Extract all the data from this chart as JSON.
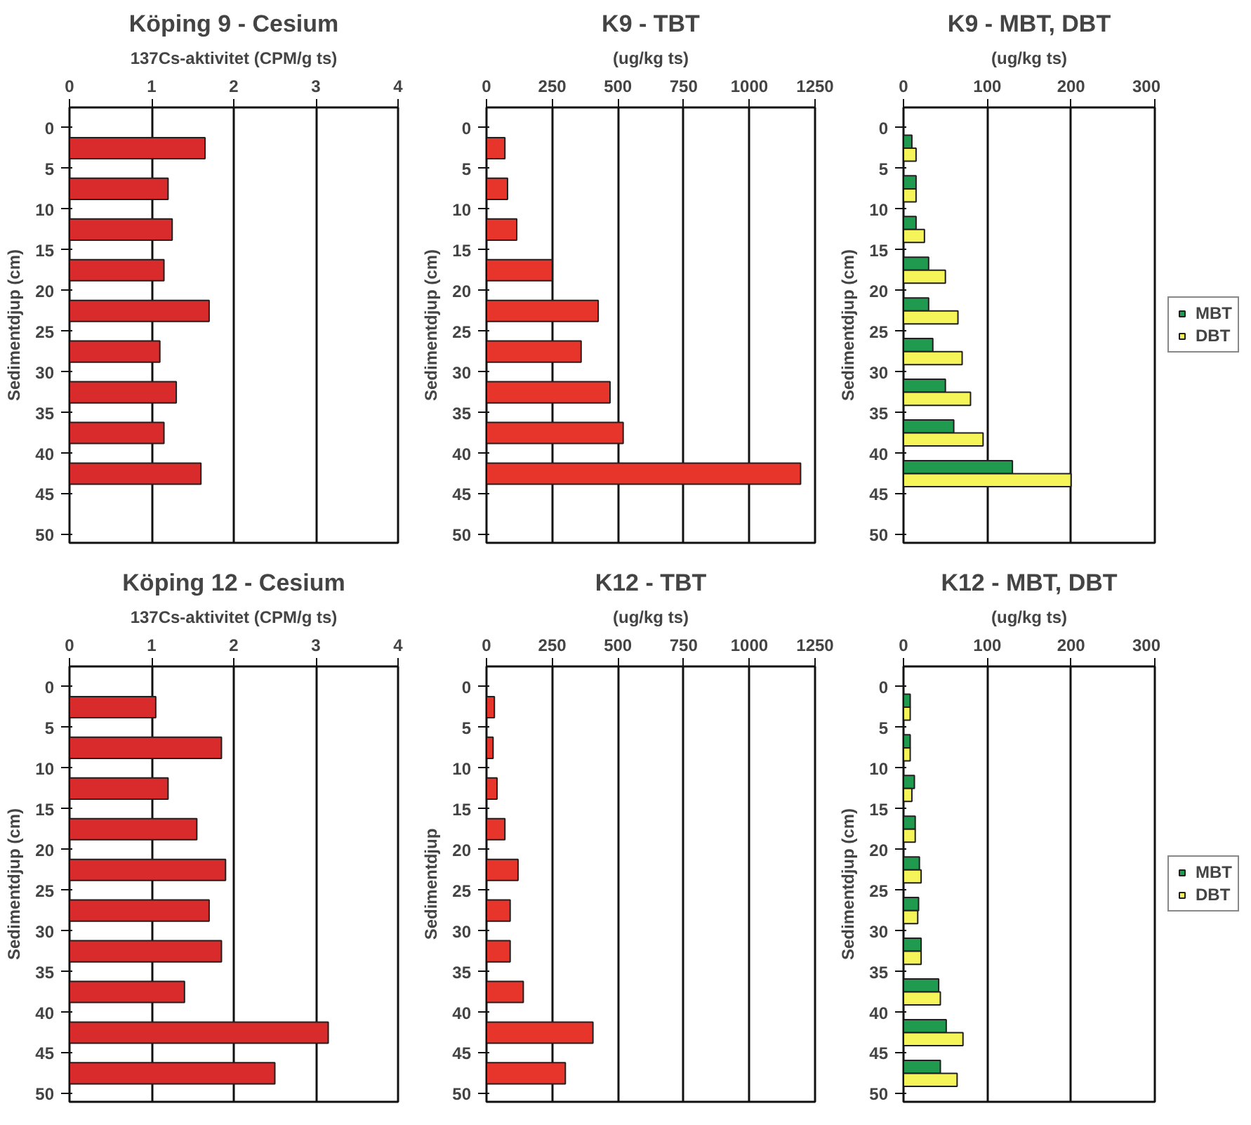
{
  "chart_data": [
    {
      "type": "bar",
      "orientation": "horizontal",
      "title": "Köping 9 - Cesium",
      "xlabel": "137Cs-aktivitet (CPM/g ts)",
      "ylabel": "Sedimentdjup (cm)",
      "xlim": [
        0,
        4
      ],
      "xticks": [
        0,
        1,
        2,
        3,
        4
      ],
      "ylim": [
        51,
        -2.5
      ],
      "yticks": [
        0,
        5,
        10,
        15,
        20,
        25,
        30,
        35,
        40,
        45,
        50
      ],
      "grid": "x",
      "x": [
        2.5,
        7.5,
        12.5,
        17.5,
        22.5,
        27.5,
        32.5,
        37.5,
        42.5
      ],
      "series": [
        {
          "color": "#d92b2b",
          "values": [
            1.65,
            1.2,
            1.25,
            1.15,
            1.7,
            1.1,
            1.3,
            1.15,
            1.6
          ]
        }
      ]
    },
    {
      "type": "bar",
      "orientation": "horizontal",
      "title": "K9 - TBT",
      "xlabel": "(ug/kg ts)",
      "ylabel": "Sedimentdjup (cm)",
      "xlim": [
        0,
        1250
      ],
      "xticks": [
        0,
        250,
        500,
        750,
        1000,
        1250
      ],
      "ylim": [
        51,
        -2.5
      ],
      "yticks": [
        0,
        5,
        10,
        15,
        20,
        25,
        30,
        35,
        40,
        45,
        50
      ],
      "grid": "x",
      "x": [
        2.5,
        7.5,
        12.5,
        17.5,
        22.5,
        27.5,
        32.5,
        37.5,
        42.5
      ],
      "series": [
        {
          "color": "#e8352b",
          "values": [
            70,
            80,
            115,
            250,
            425,
            360,
            470,
            520,
            1195
          ]
        }
      ]
    },
    {
      "type": "bar",
      "orientation": "horizontal",
      "title": "K9 - MBT, DBT",
      "xlabel": "(ug/kg ts)",
      "ylabel": "Sedimentdjup (cm)",
      "xlim": [
        0,
        300
      ],
      "xticks": [
        0,
        100,
        200,
        300
      ],
      "ylim": [
        51,
        -2.5
      ],
      "yticks": [
        0,
        5,
        10,
        15,
        20,
        25,
        30,
        35,
        40,
        45,
        50
      ],
      "grid": "x",
      "legend": "right",
      "x": [
        2.5,
        7.5,
        12.5,
        17.5,
        22.5,
        27.5,
        32.5,
        37.5,
        42.5
      ],
      "series": [
        {
          "name": "MBT",
          "color": "#1f9a4f",
          "values": [
            10,
            15,
            15,
            30,
            30,
            35,
            50,
            60,
            130
          ]
        },
        {
          "name": "DBT",
          "color": "#f5f55a",
          "values": [
            15,
            15,
            25,
            50,
            65,
            70,
            80,
            95,
            200
          ]
        }
      ]
    },
    {
      "type": "bar",
      "orientation": "horizontal",
      "title": "Köping 12 - Cesium",
      "xlabel": "137Cs-aktivitet (CPM/g ts)",
      "ylabel": "Sedimentdjup (cm)",
      "xlim": [
        0,
        4
      ],
      "xticks": [
        0,
        1,
        2,
        3,
        4
      ],
      "ylim": [
        51,
        -2.5
      ],
      "yticks": [
        0,
        5,
        10,
        15,
        20,
        25,
        30,
        35,
        40,
        45,
        50
      ],
      "grid": "x",
      "x": [
        2.5,
        7.5,
        12.5,
        17.5,
        22.5,
        27.5,
        32.5,
        37.5,
        42.5,
        47.5
      ],
      "series": [
        {
          "color": "#d92b2b",
          "values": [
            1.05,
            1.85,
            1.2,
            1.55,
            1.9,
            1.7,
            1.85,
            1.4,
            3.15,
            2.5
          ]
        }
      ]
    },
    {
      "type": "bar",
      "orientation": "horizontal",
      "title": "K12 - TBT",
      "xlabel": "(ug/kg ts)",
      "ylabel": "Sedimentdjup",
      "xlim": [
        0,
        1250
      ],
      "xticks": [
        0,
        250,
        500,
        750,
        1000,
        1250
      ],
      "ylim": [
        51,
        -2.5
      ],
      "yticks": [
        0,
        5,
        10,
        15,
        20,
        25,
        30,
        35,
        40,
        45,
        50
      ],
      "grid": "x",
      "x": [
        2.5,
        7.5,
        12.5,
        17.5,
        22.5,
        27.5,
        32.5,
        37.5,
        42.5,
        47.5
      ],
      "series": [
        {
          "color": "#e8352b",
          "values": [
            30,
            25,
            40,
            70,
            120,
            90,
            90,
            140,
            405,
            300
          ]
        }
      ]
    },
    {
      "type": "bar",
      "orientation": "horizontal",
      "title": "K12 - MBT, DBT",
      "xlabel": "(ug/kg ts)",
      "ylabel": "Sedimentdjup (cm)",
      "xlim": [
        0,
        300
      ],
      "xticks": [
        0,
        100,
        200,
        300
      ],
      "ylim": [
        51,
        -2.5
      ],
      "yticks": [
        0,
        5,
        10,
        15,
        20,
        25,
        30,
        35,
        40,
        45,
        50
      ],
      "grid": "x",
      "legend": "right",
      "x": [
        2.5,
        7.5,
        12.5,
        17.5,
        22.5,
        27.5,
        32.5,
        37.5,
        42.5,
        47.5
      ],
      "series": [
        {
          "name": "MBT",
          "color": "#1f9a4f",
          "values": [
            8,
            8,
            13,
            14,
            19,
            18,
            21,
            42,
            51,
            44
          ]
        },
        {
          "name": "DBT",
          "color": "#f5f55a",
          "values": [
            8,
            8,
            10,
            14,
            21,
            17,
            21,
            44,
            71,
            64
          ]
        }
      ]
    }
  ]
}
